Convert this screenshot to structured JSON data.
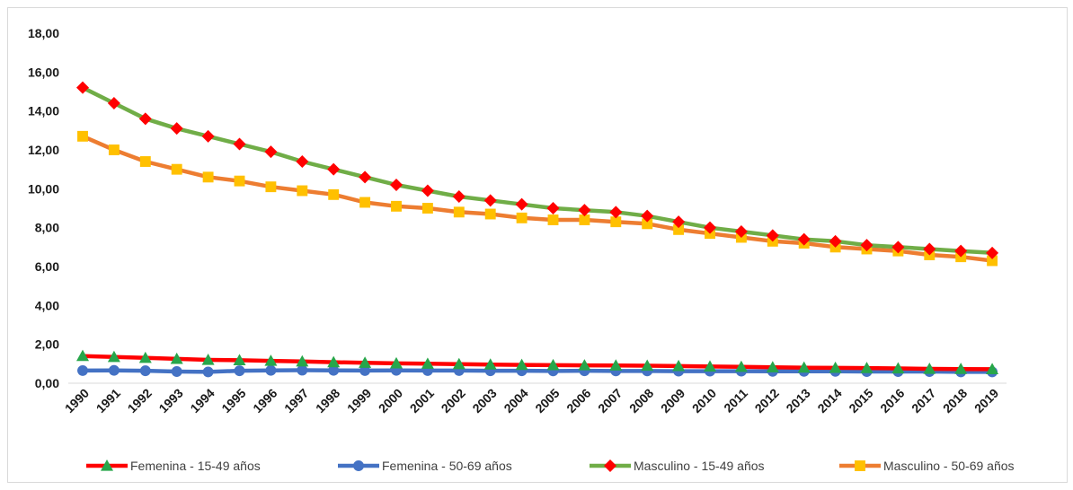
{
  "chart_data": {
    "type": "line",
    "title": "",
    "xlabel": "",
    "ylabel": "",
    "ylim": [
      0,
      18
    ],
    "yticks": [
      "0,00",
      "2,00",
      "4,00",
      "6,00",
      "8,00",
      "10,00",
      "12,00",
      "14,00",
      "16,00",
      "18,00"
    ],
    "grid": false,
    "legend_position": "bottom",
    "categories": [
      "1990",
      "1991",
      "1992",
      "1993",
      "1994",
      "1995",
      "1996",
      "1997",
      "1998",
      "1999",
      "2000",
      "2001",
      "2002",
      "2003",
      "2004",
      "2005",
      "2006",
      "2007",
      "2008",
      "2009",
      "2010",
      "2011",
      "2012",
      "2013",
      "2014",
      "2015",
      "2016",
      "2017",
      "2018",
      "2019"
    ],
    "series": [
      {
        "name": "Femenina - 15-49 años",
        "line_color": "#ff0000",
        "marker": "triangle",
        "marker_color": "#27a64a",
        "values": [
          1.4,
          1.35,
          1.3,
          1.25,
          1.2,
          1.18,
          1.15,
          1.12,
          1.08,
          1.05,
          1.02,
          1.0,
          0.98,
          0.96,
          0.94,
          0.93,
          0.92,
          0.91,
          0.9,
          0.88,
          0.86,
          0.84,
          0.82,
          0.8,
          0.79,
          0.78,
          0.76,
          0.74,
          0.73,
          0.72
        ]
      },
      {
        "name": "Femenina - 50-69 años",
        "line_color": "#4472c4",
        "marker": "circle",
        "marker_color": "#4472c4",
        "values": [
          0.65,
          0.66,
          0.64,
          0.6,
          0.58,
          0.64,
          0.66,
          0.67,
          0.66,
          0.65,
          0.66,
          0.65,
          0.65,
          0.64,
          0.64,
          0.63,
          0.64,
          0.63,
          0.63,
          0.62,
          0.62,
          0.62,
          0.61,
          0.61,
          0.61,
          0.6,
          0.6,
          0.6,
          0.58,
          0.58
        ]
      },
      {
        "name": "Masculino - 15-49 años",
        "line_color": "#70ad47",
        "marker": "diamond",
        "marker_color": "#ff0000",
        "values": [
          15.2,
          14.4,
          13.6,
          13.1,
          12.7,
          12.3,
          11.9,
          11.4,
          11.0,
          10.6,
          10.2,
          9.9,
          9.6,
          9.4,
          9.2,
          9.0,
          8.9,
          8.8,
          8.6,
          8.3,
          8.0,
          7.8,
          7.6,
          7.4,
          7.3,
          7.1,
          7.0,
          6.9,
          6.8,
          6.7
        ]
      },
      {
        "name": "Masculino - 50-69 años",
        "line_color": "#ed7d31",
        "marker": "square",
        "marker_color": "#ffc000",
        "values": [
          12.7,
          12.0,
          11.4,
          11.0,
          10.6,
          10.4,
          10.1,
          9.9,
          9.7,
          9.3,
          9.1,
          9.0,
          8.8,
          8.7,
          8.5,
          8.4,
          8.4,
          8.3,
          8.2,
          7.9,
          7.7,
          7.5,
          7.3,
          7.2,
          7.0,
          6.9,
          6.8,
          6.6,
          6.5,
          6.3
        ]
      }
    ]
  }
}
